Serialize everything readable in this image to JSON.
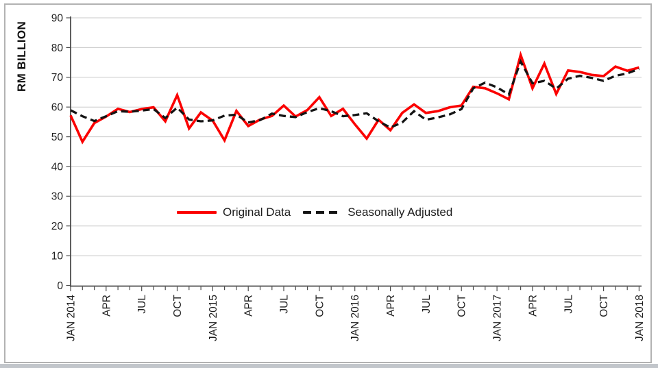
{
  "figure": {
    "background": "#ffffff",
    "border_color": "#b2b2b2",
    "bottom_bar_color": "#c2c6cb"
  },
  "axes": {
    "axis_color": "#4c4c4c",
    "grid_color": "#c8c8c8",
    "label_color": "#1f1f1f"
  },
  "chart_data": {
    "type": "line",
    "title": "",
    "ylabel": "RM BILLION",
    "xlabel": "",
    "ylim": [
      0,
      90
    ],
    "ytick_step": 10,
    "y_tick_labels": [
      "0",
      "10",
      "20",
      "30",
      "40",
      "50",
      "60",
      "70",
      "80",
      "90"
    ],
    "x_start": "JAN 2014",
    "x_end": "JAN 2018",
    "x_frequency": "monthly",
    "x_tick_labels": [
      "JAN 2014",
      "APR",
      "JUL",
      "OCT",
      "JAN 2015",
      "APR",
      "JUL",
      "OCT",
      "JAN 2016",
      "APR",
      "JUL",
      "OCT",
      "JAN 2017",
      "APR",
      "JUL",
      "OCT",
      "JAN 2018"
    ],
    "grid": "horizontal",
    "legend_position": "inside-center",
    "series": [
      {
        "name": "Original Data",
        "color": "#fb0000",
        "line_style": "solid",
        "values": [
          57.2,
          48.3,
          54.6,
          56.8,
          59.4,
          58.3,
          59.3,
          59.9,
          55.2,
          64.0,
          52.8,
          58.2,
          55.4,
          48.8,
          58.7,
          53.6,
          55.8,
          57.0,
          60.5,
          56.8,
          59.0,
          63.3,
          57.0,
          59.4,
          54.2,
          49.4,
          55.7,
          52.2,
          58.0,
          60.9,
          58.0,
          58.6,
          59.9,
          60.5,
          66.8,
          66.3,
          64.6,
          62.6,
          77.5,
          66.3,
          74.6,
          64.4,
          72.3,
          71.8,
          70.8,
          70.4,
          73.6,
          72.2,
          73.3
        ]
      },
      {
        "name": "Seasonally Adjusted",
        "color": "#141414",
        "line_style": "dashed",
        "values": [
          58.9,
          56.9,
          55.3,
          56.9,
          58.6,
          58.4,
          58.8,
          59.3,
          56.3,
          59.8,
          55.8,
          55.2,
          55.5,
          57.1,
          57.4,
          54.8,
          55.6,
          57.8,
          57.0,
          56.6,
          58.3,
          59.6,
          58.6,
          56.9,
          57.3,
          57.9,
          55.2,
          53.1,
          54.8,
          58.6,
          55.7,
          56.5,
          57.5,
          59.3,
          66.3,
          68.2,
          66.6,
          64.2,
          75.3,
          68.0,
          68.8,
          66.2,
          69.5,
          70.5,
          69.8,
          68.8,
          70.5,
          71.3,
          72.8
        ]
      }
    ]
  }
}
